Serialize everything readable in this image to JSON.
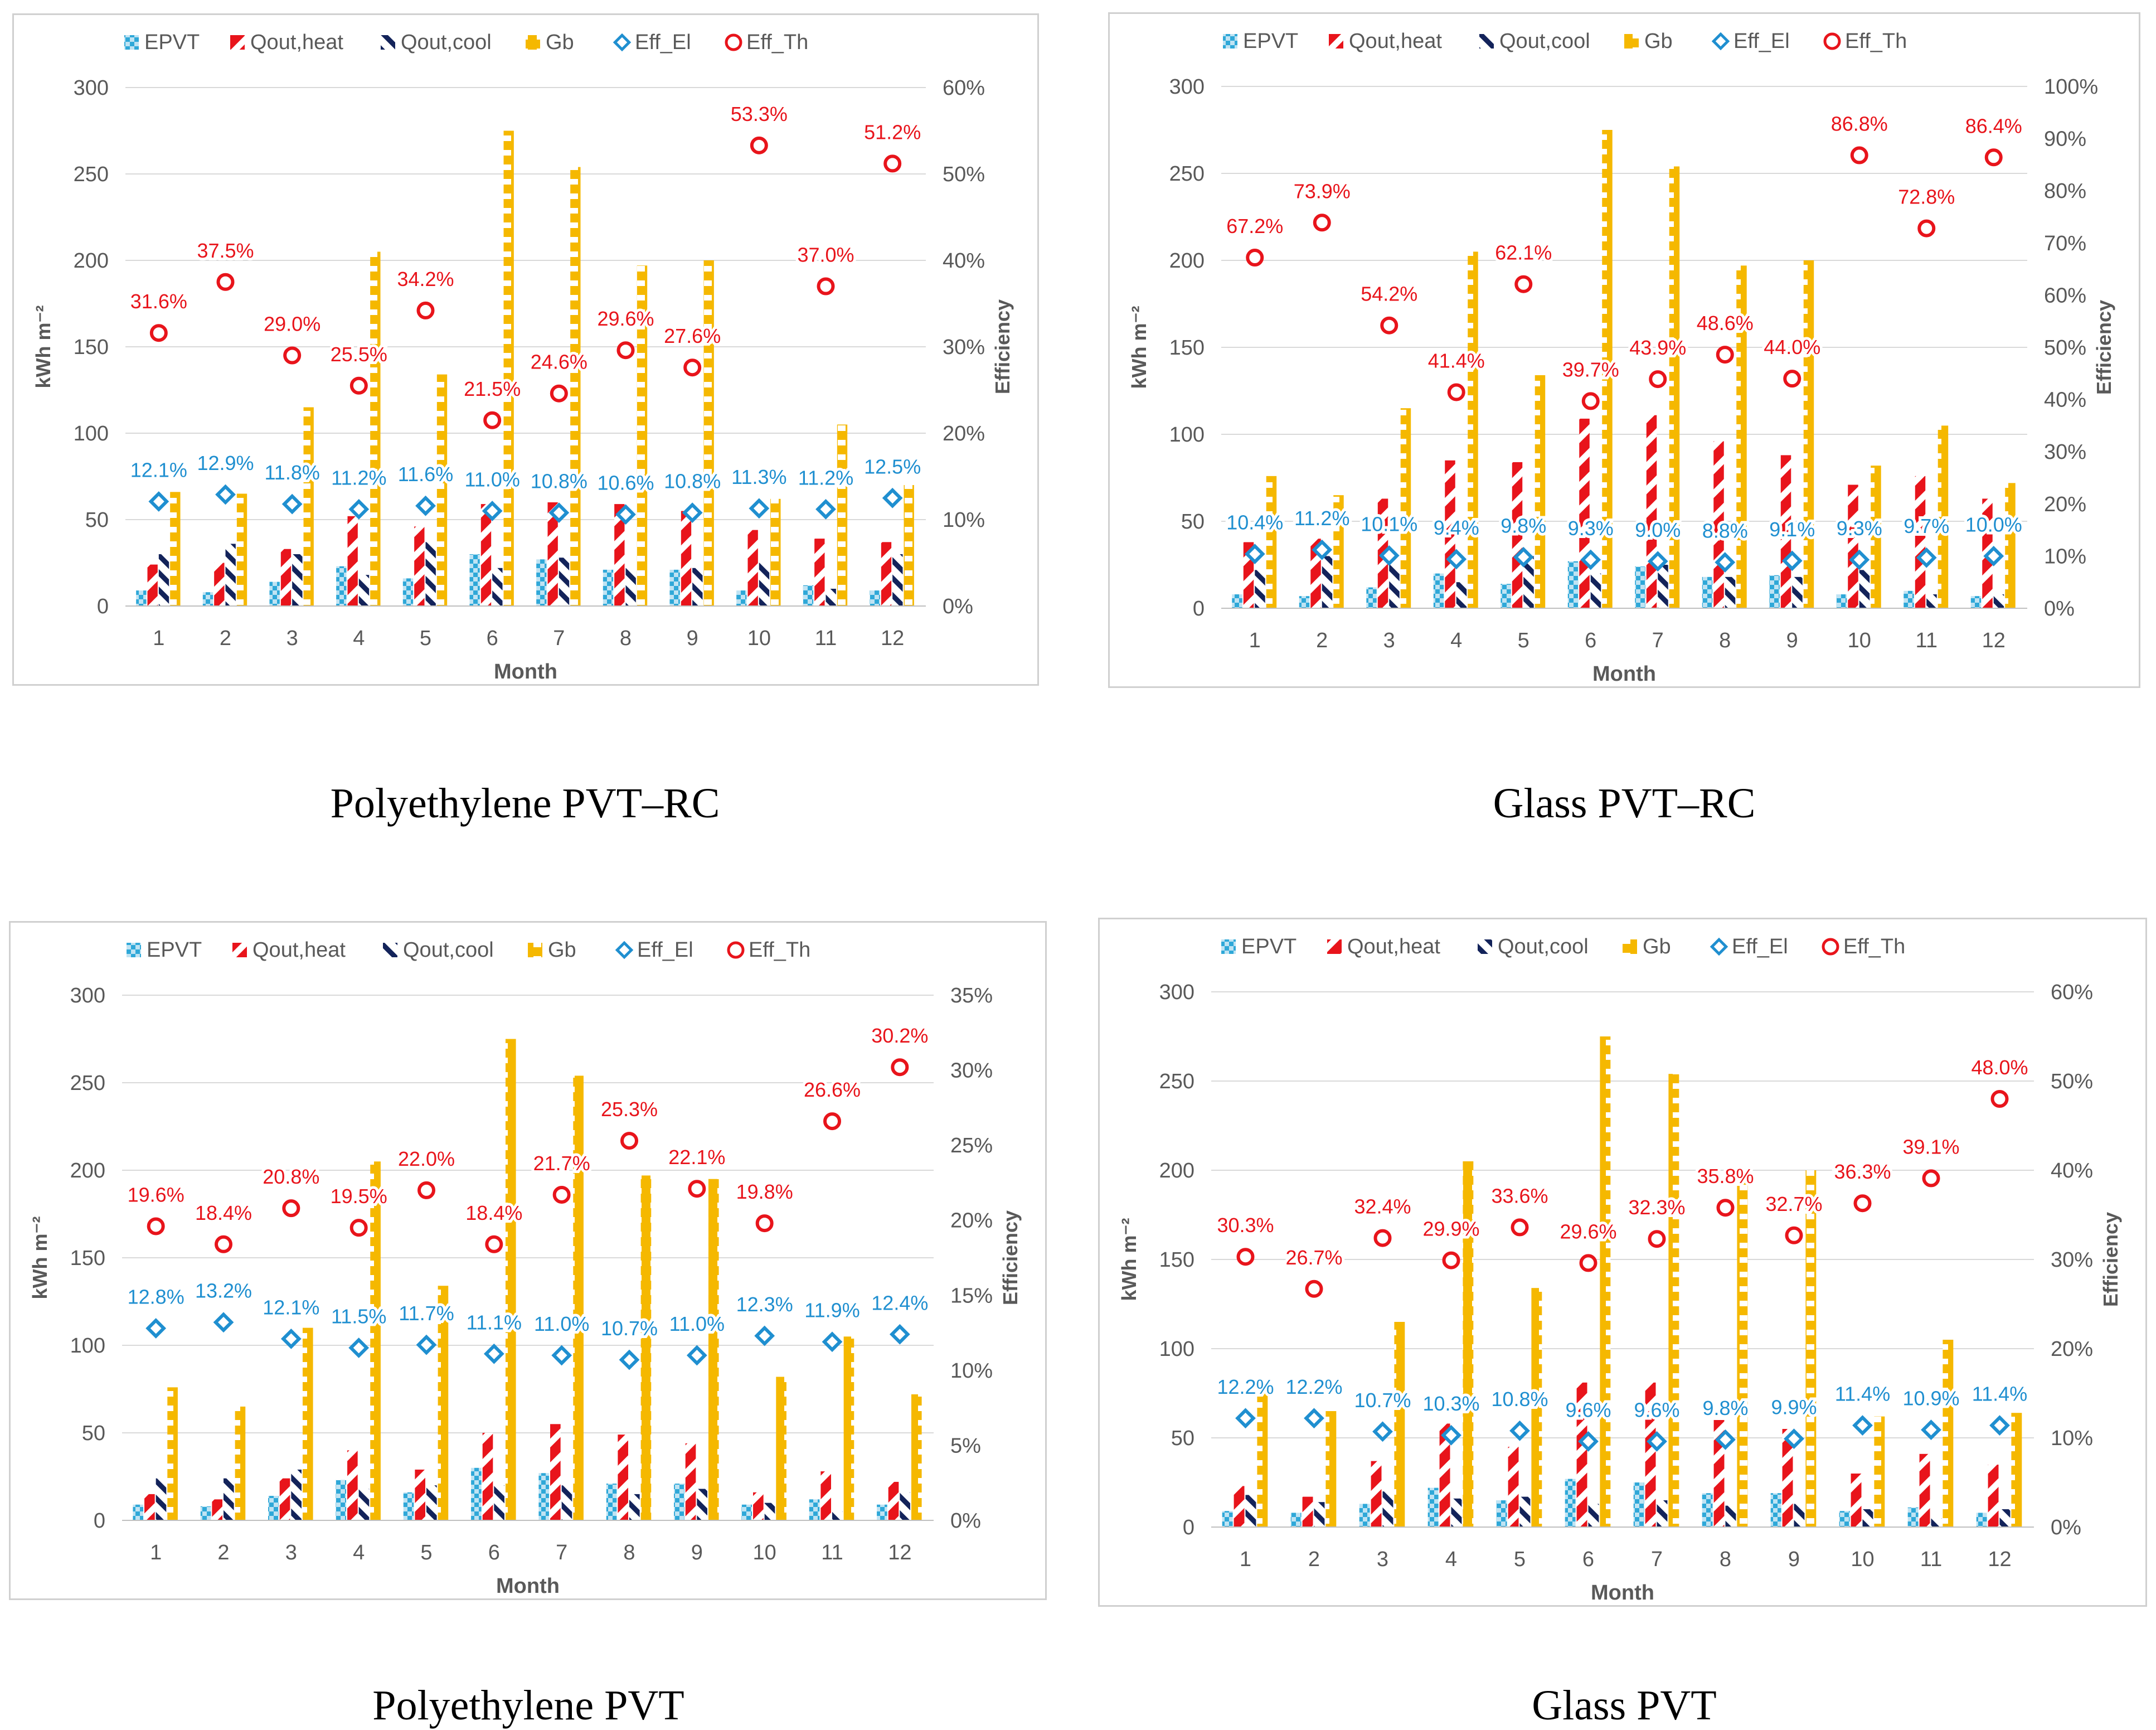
{
  "colors": {
    "epvt": "#2fa8d8",
    "qheat": "#e8141b",
    "qcool": "#13235a",
    "gb": "#f5b800",
    "eff_el": "#1f8fd0",
    "eff_th": "#e8141b",
    "axis_text": "#595959",
    "grid": "#d9d9d9"
  },
  "captions": [
    "Polyethylene PVT–RC",
    "Glass PVT–RC",
    "Polyethylene PVT",
    "Glass PVT"
  ],
  "chart_data": [
    {
      "type": "bar",
      "title": "Polyethylene PVT–RC",
      "categories": [
        "1",
        "2",
        "3",
        "4",
        "5",
        "6",
        "7",
        "8",
        "9",
        "10",
        "11",
        "12"
      ],
      "xlabel": "Month",
      "ylabel": "kWh m⁻²",
      "y2label": "Efficiency",
      "ylim": [
        0,
        300
      ],
      "yticks": [
        "0",
        "50",
        "100",
        "150",
        "200",
        "250",
        "300"
      ],
      "y2lim": [
        0,
        60
      ],
      "y2ticks": [
        "0%",
        "10%",
        "20%",
        "30%",
        "40%",
        "50%",
        "60%"
      ],
      "legend": [
        "EPVT",
        "Qout,heat",
        "Qout,cool",
        "Gb",
        "Eff_El",
        "Eff_Th"
      ],
      "series": [
        {
          "name": "EPVT",
          "values": [
            9,
            8,
            14,
            23,
            16,
            30,
            27,
            21,
            21,
            9,
            12,
            9
          ]
        },
        {
          "name": "Qout,heat",
          "values": [
            24,
            25,
            33,
            52,
            46,
            59,
            60,
            59,
            55,
            44,
            39,
            37
          ]
        },
        {
          "name": "Qout,cool",
          "values": [
            30,
            36,
            30,
            18,
            37,
            22,
            28,
            22,
            22,
            25,
            10,
            30
          ]
        },
        {
          "name": "Gb",
          "values": [
            66,
            65,
            115,
            205,
            134,
            275,
            254,
            197,
            200,
            62,
            105,
            70
          ]
        },
        {
          "name": "Eff_El",
          "values": [
            12.1,
            12.9,
            11.8,
            11.2,
            11.6,
            11.0,
            10.8,
            10.6,
            10.8,
            11.3,
            11.2,
            12.5
          ],
          "labels": [
            "12.1%",
            "12.9%",
            "11.8%",
            "11.2%",
            "11.6%",
            "11.0%",
            "10.8%",
            "10.6%",
            "10.8%",
            "11.3%",
            "11.2%",
            "12.5%"
          ]
        },
        {
          "name": "Eff_Th",
          "values": [
            31.6,
            37.5,
            29.0,
            25.5,
            34.2,
            21.5,
            24.6,
            29.6,
            27.6,
            53.3,
            37.0,
            51.2
          ],
          "labels": [
            "31.6%",
            "37.5%",
            "29.0%",
            "25.5%",
            "34.2%",
            "21.5%",
            "24.6%",
            "29.6%",
            "27.6%",
            "53.3%",
            "37.0%",
            "51.2%"
          ]
        }
      ]
    },
    {
      "type": "bar",
      "title": "Glass PVT–RC",
      "categories": [
        "1",
        "2",
        "3",
        "4",
        "5",
        "6",
        "7",
        "8",
        "9",
        "10",
        "11",
        "12"
      ],
      "xlabel": "Month",
      "ylabel": "kWh m⁻²",
      "y2label": "Efficiency",
      "ylim": [
        0,
        300
      ],
      "yticks": [
        "0",
        "50",
        "100",
        "150",
        "200",
        "250",
        "300"
      ],
      "y2lim": [
        0,
        100
      ],
      "y2ticks": [
        "0%",
        "10%",
        "20%",
        "30%",
        "40%",
        "50%",
        "60%",
        "70%",
        "80%",
        "90%",
        "100%"
      ],
      "legend": [
        "EPVT",
        "Qout,heat",
        "Qout,cool",
        "Gb",
        "Eff_El",
        "Eff_Th"
      ],
      "series": [
        {
          "name": "EPVT",
          "values": [
            8,
            7,
            12,
            20,
            14,
            27,
            24,
            18,
            19,
            8,
            10,
            7
          ]
        },
        {
          "name": "Qout,heat",
          "values": [
            38,
            40,
            63,
            85,
            84,
            109,
            111,
            96,
            88,
            71,
            76,
            63
          ]
        },
        {
          "name": "Qout,cool",
          "values": [
            22,
            30,
            25,
            15,
            30,
            20,
            25,
            18,
            18,
            22,
            8,
            8
          ]
        },
        {
          "name": "Gb",
          "values": [
            76,
            65,
            115,
            205,
            134,
            275,
            254,
            197,
            200,
            82,
            105,
            72
          ]
        },
        {
          "name": "Eff_El",
          "values": [
            10.4,
            11.2,
            10.1,
            9.4,
            9.8,
            9.3,
            9.0,
            8.8,
            9.1,
            9.3,
            9.7,
            10.0
          ],
          "labels": [
            "10.4%",
            "11.2%",
            "10.1%",
            "9.4%",
            "9.8%",
            "9.3%",
            "9.0%",
            "8.8%",
            "9.1%",
            "9.3%",
            "9.7%",
            "10.0%"
          ]
        },
        {
          "name": "Eff_Th",
          "values": [
            67.2,
            73.9,
            54.2,
            41.4,
            62.1,
            39.7,
            43.9,
            48.6,
            44.0,
            86.8,
            72.8,
            86.4
          ],
          "labels": [
            "67.2%",
            "73.9%",
            "54.2%",
            "41.4%",
            "62.1%",
            "39.7%",
            "43.9%",
            "48.6%",
            "44.0%",
            "86.8%",
            "72.8%",
            "86.4%"
          ]
        }
      ]
    },
    {
      "type": "bar",
      "title": "Polyethylene PVT",
      "categories": [
        "1",
        "2",
        "3",
        "4",
        "5",
        "6",
        "7",
        "8",
        "9",
        "10",
        "11",
        "12"
      ],
      "xlabel": "Month",
      "ylabel": "kWh m⁻²",
      "y2label": "Efficiency",
      "ylim": [
        0,
        300
      ],
      "yticks": [
        "0",
        "50",
        "100",
        "150",
        "200",
        "250",
        "300"
      ],
      "y2lim": [
        0,
        35
      ],
      "y2ticks": [
        "0%",
        "5%",
        "10%",
        "15%",
        "20%",
        "25%",
        "30%",
        "35%"
      ],
      "legend": [
        "EPVT",
        "Qout,heat",
        "Qout,cool",
        "Gb",
        "Eff_El",
        "Eff_Th"
      ],
      "series": [
        {
          "name": "EPVT",
          "values": [
            9,
            8,
            14,
            23,
            16,
            30,
            27,
            21,
            21,
            9,
            12,
            9
          ]
        },
        {
          "name": "Qout,heat",
          "values": [
            15,
            12,
            24,
            40,
            29,
            50,
            55,
            49,
            44,
            16,
            28,
            22
          ]
        },
        {
          "name": "Qout,cool",
          "values": [
            24,
            24,
            29,
            18,
            20,
            20,
            20,
            15,
            18,
            10,
            5,
            16
          ]
        },
        {
          "name": "Gb",
          "values": [
            76,
            65,
            110,
            205,
            134,
            275,
            254,
            197,
            195,
            82,
            105,
            72
          ]
        },
        {
          "name": "Eff_El",
          "values": [
            12.8,
            13.2,
            12.1,
            11.5,
            11.7,
            11.1,
            11.0,
            10.7,
            11.0,
            12.3,
            11.9,
            12.4
          ],
          "labels": [
            "12.8%",
            "13.2%",
            "12.1%",
            "11.5%",
            "11.7%",
            "11.1%",
            "11.0%",
            "10.7%",
            "11.0%",
            "12.3%",
            "11.9%",
            "12.4%"
          ]
        },
        {
          "name": "Eff_Th",
          "values": [
            19.6,
            18.4,
            20.8,
            19.5,
            22.0,
            18.4,
            21.7,
            25.3,
            22.1,
            19.8,
            26.6,
            30.2
          ],
          "labels": [
            "19.6%",
            "18.4%",
            "20.8%",
            "19.5%",
            "22.0%",
            "18.4%",
            "21.7%",
            "25.3%",
            "22.1%",
            "19.8%",
            "26.6%",
            "30.2%"
          ]
        }
      ]
    },
    {
      "type": "bar",
      "title": "Glass PVT",
      "categories": [
        "1",
        "2",
        "3",
        "4",
        "5",
        "6",
        "7",
        "8",
        "9",
        "10",
        "11",
        "12"
      ],
      "xlabel": "Month",
      "ylabel": "kWh m⁻²",
      "y2label": "Efficiency",
      "ylim": [
        0,
        300
      ],
      "yticks": [
        "0",
        "50",
        "100",
        "150",
        "200",
        "250",
        "300"
      ],
      "y2lim": [
        0,
        60
      ],
      "y2ticks": [
        "0%",
        "10%",
        "20%",
        "30%",
        "40%",
        "50%",
        "60%"
      ],
      "legend": [
        "EPVT",
        "Qout,heat",
        "Qout,cool",
        "Gb",
        "Eff_El",
        "Eff_Th"
      ],
      "series": [
        {
          "name": "EPVT",
          "values": [
            9,
            8,
            13,
            22,
            15,
            27,
            25,
            19,
            19,
            9,
            11,
            8
          ]
        },
        {
          "name": "Qout,heat",
          "values": [
            23,
            17,
            37,
            58,
            45,
            81,
            81,
            60,
            55,
            30,
            41,
            35
          ]
        },
        {
          "name": "Qout,cool",
          "values": [
            18,
            14,
            20,
            16,
            17,
            13,
            15,
            12,
            13,
            10,
            5,
            10
          ]
        },
        {
          "name": "Gb",
          "values": [
            76,
            65,
            115,
            205,
            134,
            275,
            254,
            197,
            200,
            62,
            105,
            64
          ]
        },
        {
          "name": "Eff_El",
          "values": [
            12.2,
            12.2,
            10.7,
            10.3,
            10.8,
            9.6,
            9.6,
            9.8,
            9.9,
            11.4,
            10.9,
            11.4
          ],
          "labels": [
            "12.2%",
            "12.2%",
            "10.7%",
            "10.3%",
            "10.8%",
            "9.6%",
            "9.6%",
            "9.8%",
            "9.9%",
            "11.4%",
            "10.9%",
            "11.4%"
          ]
        },
        {
          "name": "Eff_Th",
          "values": [
            30.3,
            26.7,
            32.4,
            29.9,
            33.6,
            29.6,
            32.3,
            35.8,
            32.7,
            36.3,
            39.1,
            48.0
          ],
          "labels": [
            "30.3%",
            "26.7%",
            "32.4%",
            "29.9%",
            "33.6%",
            "29.6%",
            "32.3%",
            "35.8%",
            "32.7%",
            "36.3%",
            "39.1%",
            "48.0%"
          ]
        }
      ]
    }
  ]
}
